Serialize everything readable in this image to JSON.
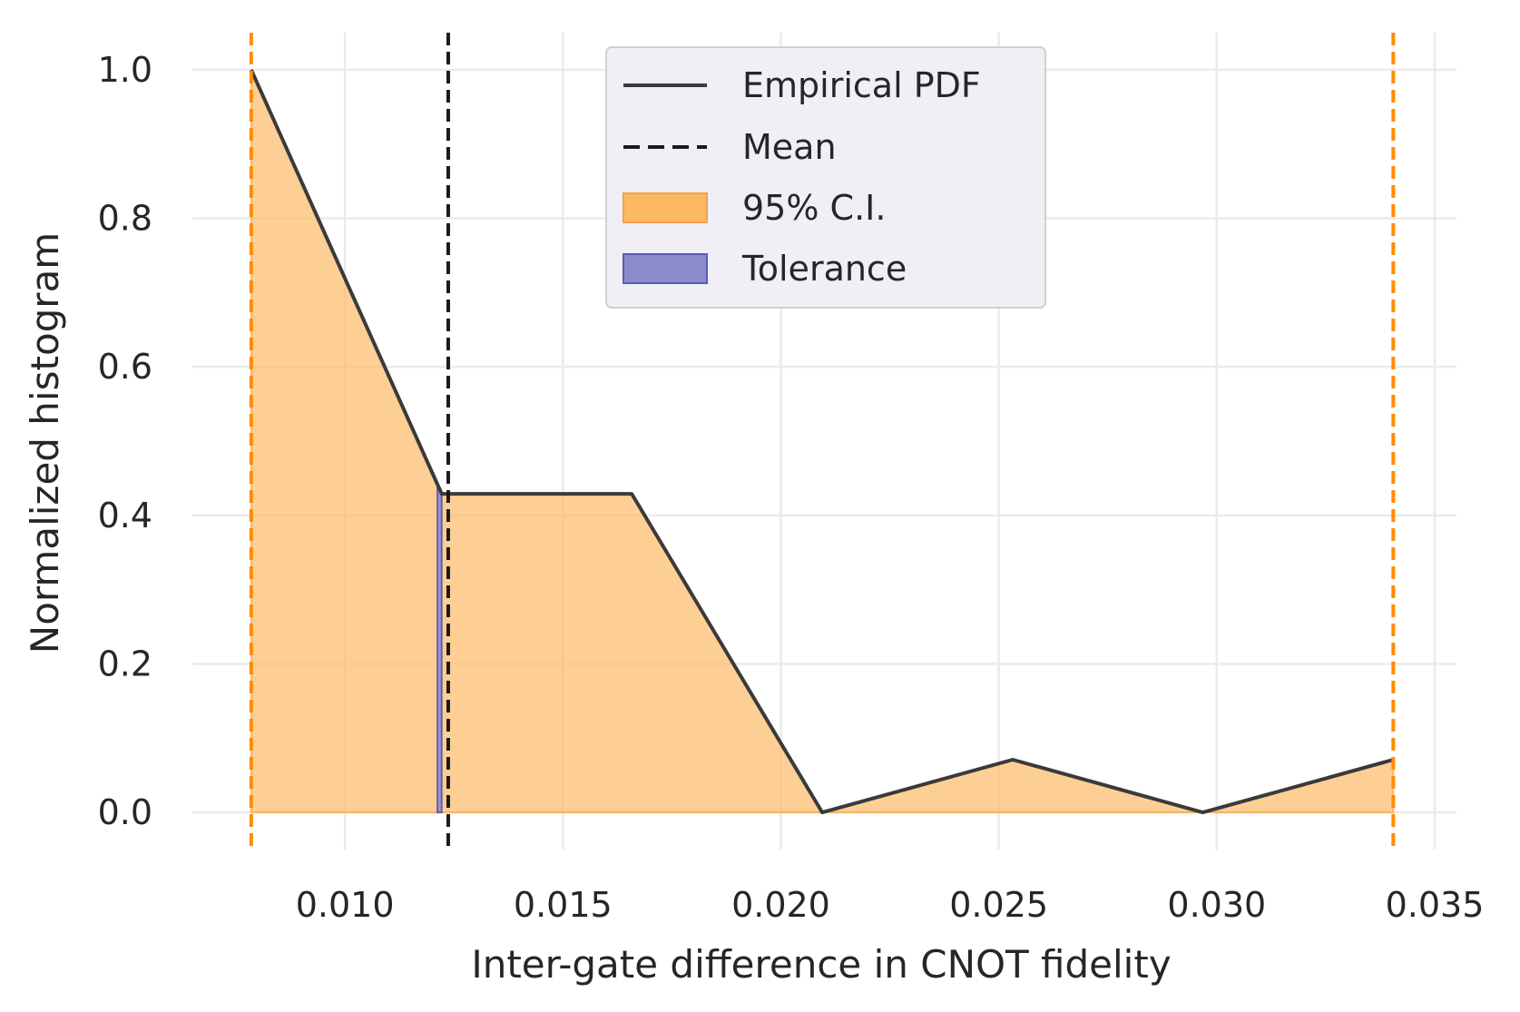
{
  "chart_data": {
    "type": "area",
    "xlabel": "Inter-gate difference in CNOT fidelity",
    "ylabel": "Normalized histogram",
    "xlim": [
      0.0065,
      0.0355
    ],
    "ylim": [
      -0.05,
      1.05
    ],
    "x_ticks": [
      0.01,
      0.015,
      0.02,
      0.025,
      0.03,
      0.035
    ],
    "x_tick_labels": [
      "0.010",
      "0.015",
      "0.020",
      "0.025",
      "0.030",
      "0.035"
    ],
    "y_ticks": [
      0.0,
      0.2,
      0.4,
      0.6,
      0.8,
      1.0
    ],
    "y_tick_labels": [
      "0.0",
      "0.2",
      "0.4",
      "0.6",
      "0.8",
      "1.0"
    ],
    "grid": true,
    "legend_position": "top-center",
    "series": [
      {
        "name": "Empirical PDF",
        "kind": "line",
        "color": "#3a3a3a",
        "x": [
          0.00785,
          0.01222,
          0.01658,
          0.02095,
          0.02532,
          0.02968,
          0.03405
        ],
        "y": [
          1.0,
          0.429,
          0.429,
          0.0,
          0.071,
          0.0,
          0.071
        ]
      }
    ],
    "mean": {
      "name": "Mean",
      "x": 0.01237,
      "color": "#1a1a1a"
    },
    "ci": {
      "name": "95% C.I.",
      "lower": 0.00785,
      "upper": 0.03405,
      "color": "#ff8c00",
      "fill": "#fdb863"
    },
    "tolerance": {
      "name": "Tolerance",
      "lower": 0.01212,
      "upper": 0.01222,
      "color": "#3f3fae"
    },
    "legend": [
      {
        "label": "Empirical PDF",
        "kind": "line",
        "color": "#3a3a3a"
      },
      {
        "label": "Mean",
        "kind": "dashed",
        "color": "#1a1a1a"
      },
      {
        "label": "95% C.I.",
        "kind": "patch",
        "color": "#fdb863",
        "edge": "#f5a04a"
      },
      {
        "label": "Tolerance",
        "kind": "patch",
        "color": "#8c8ccc",
        "edge": "#5a5ac0"
      }
    ]
  }
}
